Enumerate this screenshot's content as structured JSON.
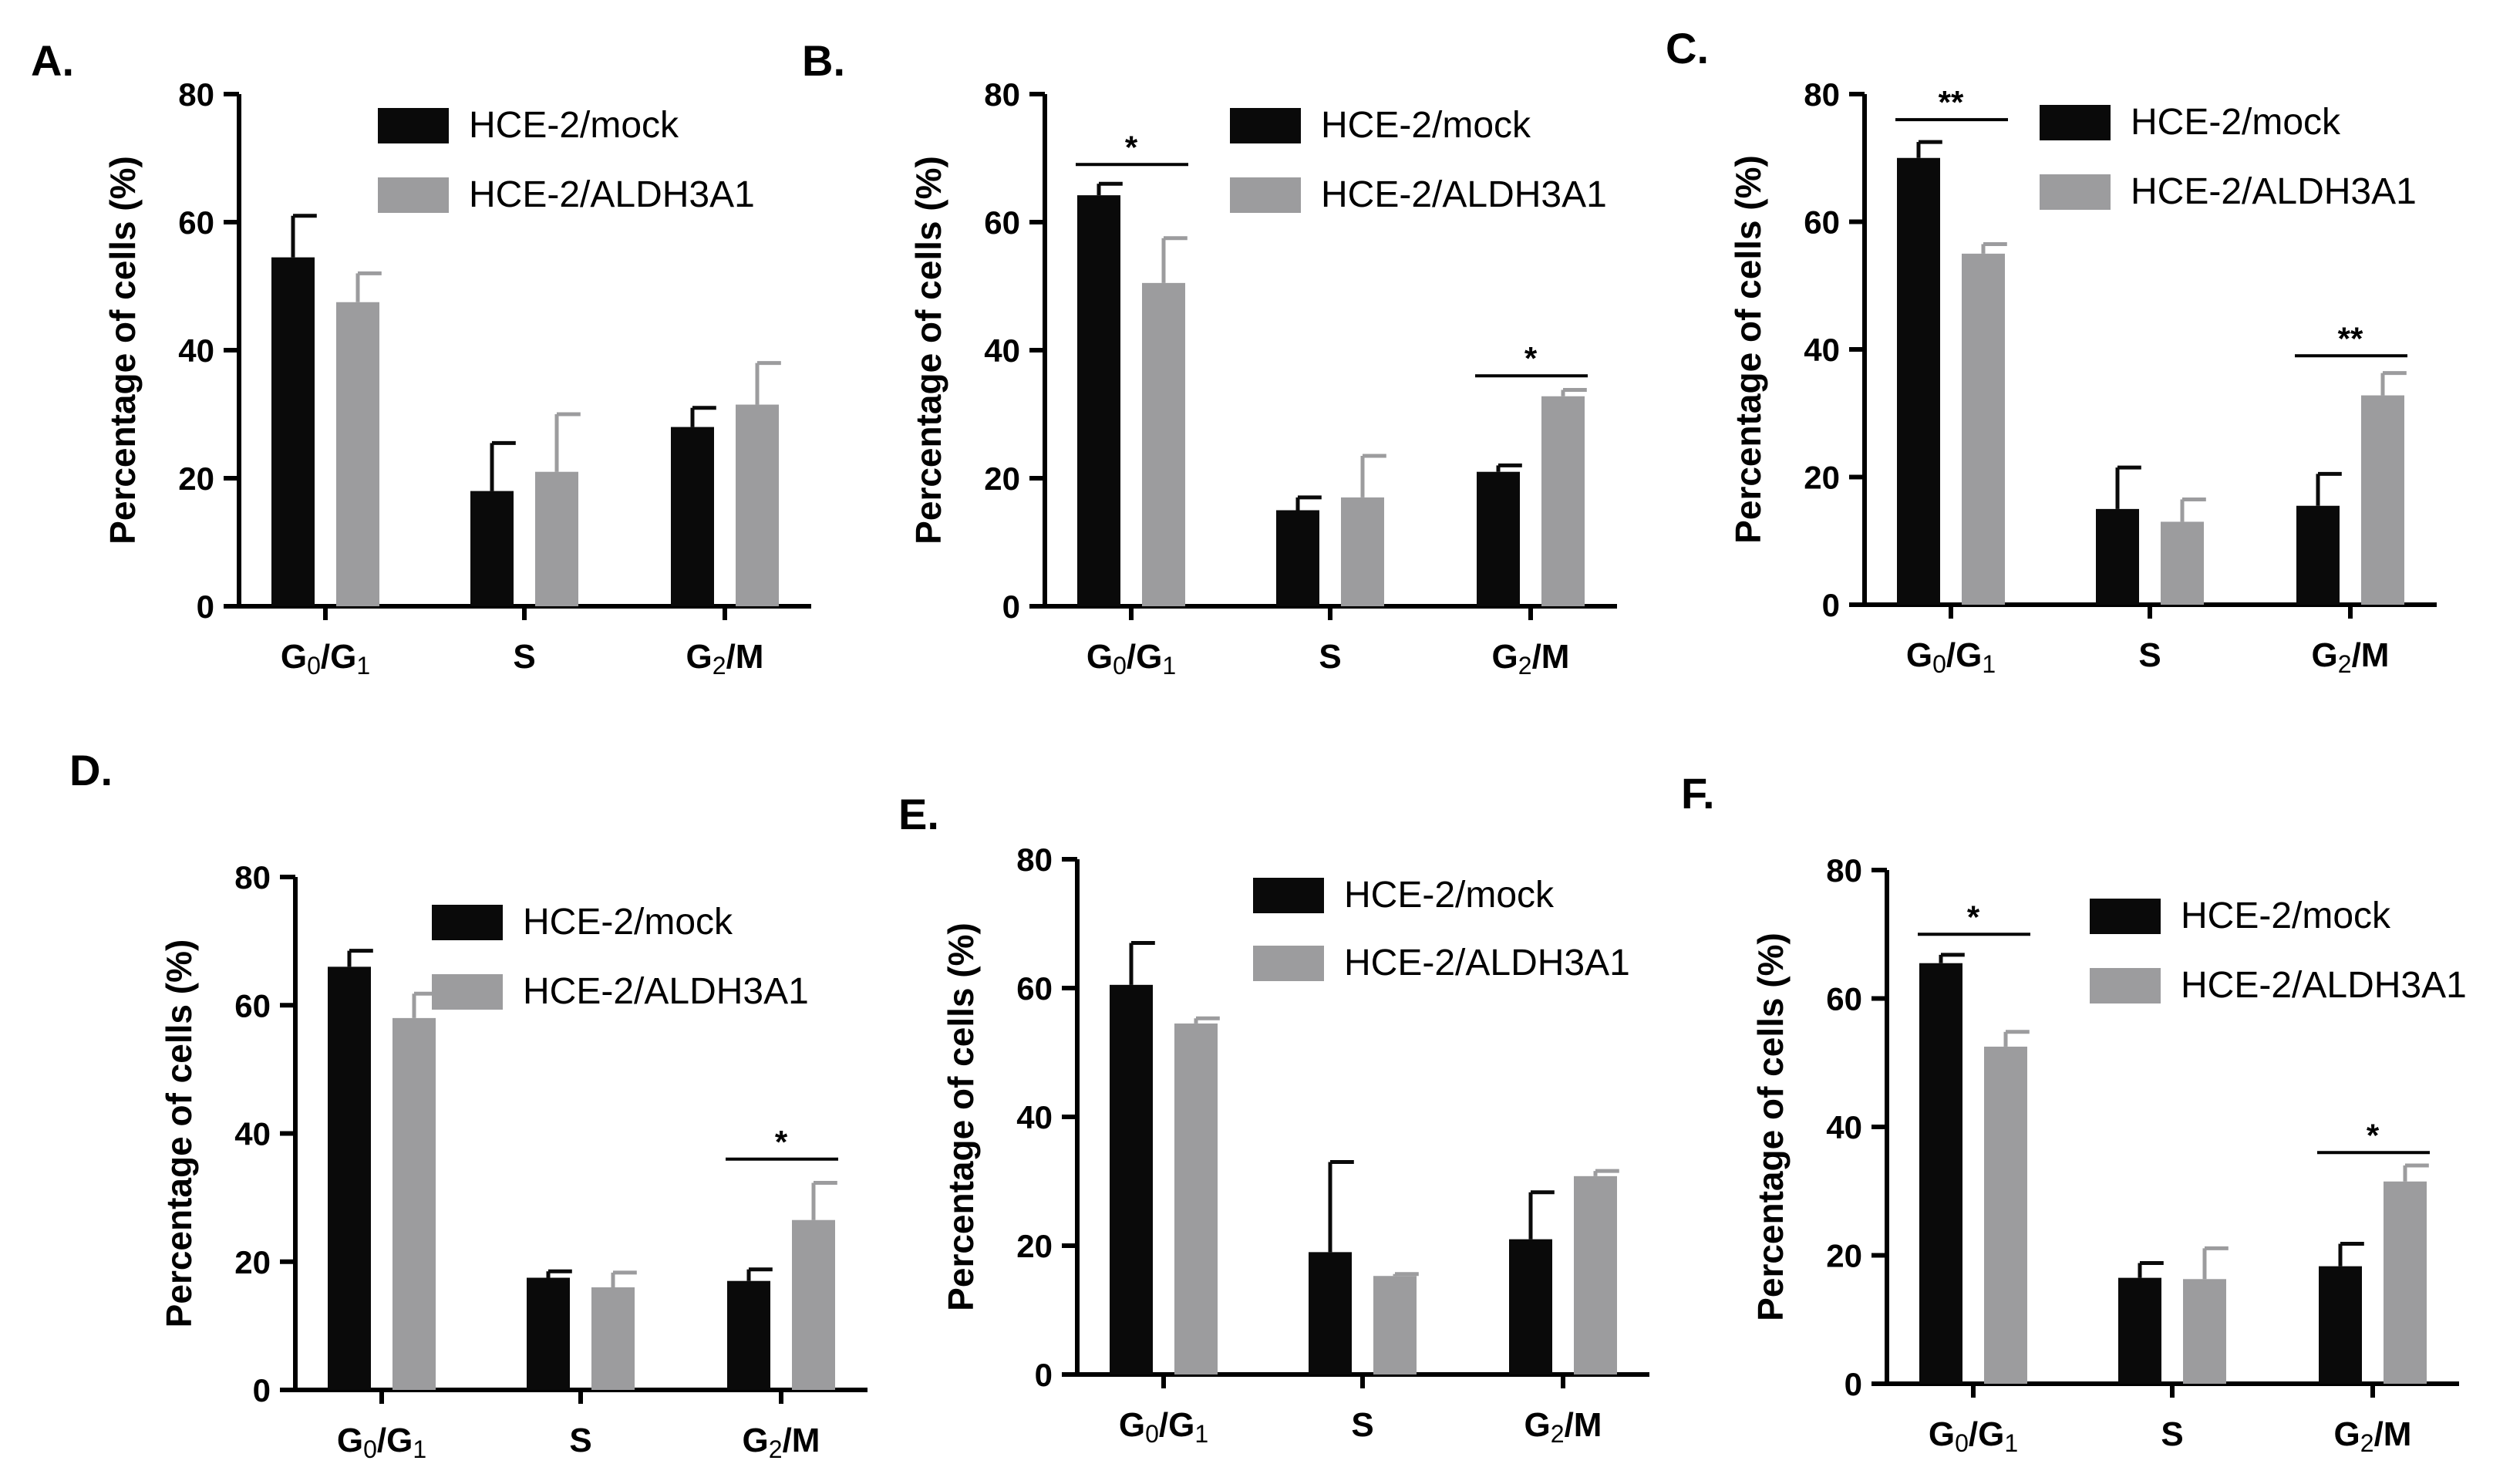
{
  "colors": {
    "mock": "#0a0a0a",
    "aldh": "#9c9c9e",
    "axis": "#000000",
    "text": "#000000"
  },
  "chart_data": [
    {
      "panel": "A.",
      "type": "bar",
      "ylabel": "Percentage of cells (%)",
      "ylim": [
        0,
        80
      ],
      "yticks": [
        0,
        20,
        40,
        60,
        80
      ],
      "categories": [
        {
          "main": "G",
          "sub1": "0",
          "sep": "/G",
          "sub2": "1"
        },
        {
          "main": "S"
        },
        {
          "main": "G",
          "sub1": "2",
          "sep": "/M"
        }
      ],
      "legend": [
        "HCE-2/mock",
        "HCE-2/ALDH3A1"
      ],
      "series": [
        {
          "name": "HCE-2/mock",
          "values": [
            54.5,
            18,
            28
          ],
          "errors": [
            6.5,
            7.5,
            3
          ]
        },
        {
          "name": "HCE-2/ALDH3A1",
          "values": [
            47.5,
            21,
            31.5
          ],
          "errors": [
            4.5,
            9,
            6.5
          ]
        }
      ],
      "significance": []
    },
    {
      "panel": "B.",
      "type": "bar",
      "ylabel": "Percentage of cells (%)",
      "ylim": [
        0,
        80
      ],
      "yticks": [
        0,
        20,
        40,
        60,
        80
      ],
      "categories": [
        {
          "main": "G",
          "sub1": "0",
          "sep": "/G",
          "sub2": "1"
        },
        {
          "main": "S"
        },
        {
          "main": "G",
          "sub1": "2",
          "sep": "/M"
        }
      ],
      "legend": [
        "HCE-2/mock",
        "HCE-2/ALDH3A1"
      ],
      "series": [
        {
          "name": "HCE-2/mock",
          "values": [
            64.2,
            15,
            21
          ],
          "errors": [
            1.8,
            2,
            1
          ]
        },
        {
          "name": "HCE-2/ALDH3A1",
          "values": [
            50.5,
            17,
            32.8
          ],
          "errors": [
            7,
            6.5,
            1
          ]
        }
      ],
      "significance": [
        {
          "category": 0,
          "label": "*",
          "y": 69
        },
        {
          "category": 2,
          "label": "*",
          "y": 36
        }
      ]
    },
    {
      "panel": "C.",
      "type": "bar",
      "ylabel": "Percentage of cells (%)",
      "ylim": [
        0,
        80
      ],
      "yticks": [
        0,
        20,
        40,
        60,
        80
      ],
      "categories": [
        {
          "main": "G",
          "sub1": "0",
          "sep": "/G",
          "sub2": "1"
        },
        {
          "main": "S"
        },
        {
          "main": "G",
          "sub1": "2",
          "sep": "/M"
        }
      ],
      "legend": [
        "HCE-2/mock",
        "HCE-2/ALDH3A1"
      ],
      "series": [
        {
          "name": "HCE-2/mock",
          "values": [
            70,
            15,
            15.5
          ],
          "errors": [
            2.5,
            6.5,
            5
          ]
        },
        {
          "name": "HCE-2/ALDH3A1",
          "values": [
            55,
            13,
            32.8
          ],
          "errors": [
            1.5,
            3.5,
            3.5
          ]
        }
      ],
      "significance": [
        {
          "category": 0,
          "label": "**",
          "y": 76
        },
        {
          "category": 2,
          "label": "**",
          "y": 39
        }
      ]
    },
    {
      "panel": "D.",
      "type": "bar",
      "ylabel": "Percentage of cells (%)",
      "ylim": [
        0,
        80
      ],
      "yticks": [
        0,
        20,
        40,
        60,
        80
      ],
      "categories": [
        {
          "main": "G",
          "sub1": "0",
          "sep": "/G",
          "sub2": "1"
        },
        {
          "main": "S"
        },
        {
          "main": "G",
          "sub1": "2",
          "sep": "/M"
        }
      ],
      "legend": [
        "HCE-2/mock",
        "HCE-2/ALDH3A1"
      ],
      "series": [
        {
          "name": "HCE-2/mock",
          "values": [
            66,
            17.5,
            17
          ],
          "errors": [
            2.5,
            1,
            1.8
          ]
        },
        {
          "name": "HCE-2/ALDH3A1",
          "values": [
            58,
            16,
            26.5
          ],
          "errors": [
            3.8,
            2.3,
            5.8
          ]
        }
      ],
      "significance": [
        {
          "category": 2,
          "label": "*",
          "y": 36
        }
      ]
    },
    {
      "panel": "E.",
      "type": "bar",
      "ylabel": "Percentage of cells (%)",
      "ylim": [
        0,
        80
      ],
      "yticks": [
        0,
        20,
        40,
        60,
        80
      ],
      "categories": [
        {
          "main": "G",
          "sub1": "0",
          "sep": "/G",
          "sub2": "1"
        },
        {
          "main": "S"
        },
        {
          "main": "G",
          "sub1": "2",
          "sep": "/M"
        }
      ],
      "legend": [
        "HCE-2/mock",
        "HCE-2/ALDH3A1"
      ],
      "series": [
        {
          "name": "HCE-2/mock",
          "values": [
            60.5,
            19,
            21
          ],
          "errors": [
            6.5,
            14,
            7.3
          ]
        },
        {
          "name": "HCE-2/ALDH3A1",
          "values": [
            54.5,
            15.3,
            30.8
          ],
          "errors": [
            0.8,
            0.3,
            0.8
          ]
        }
      ],
      "significance": []
    },
    {
      "panel": "F.",
      "type": "bar",
      "ylabel": "Percentage of cells (%)",
      "ylim": [
        0,
        80
      ],
      "yticks": [
        0,
        20,
        40,
        60,
        80
      ],
      "categories": [
        {
          "main": "G",
          "sub1": "0",
          "sep": "/G",
          "sub2": "1"
        },
        {
          "main": "S"
        },
        {
          "main": "G",
          "sub1": "2",
          "sep": "/M"
        }
      ],
      "legend": [
        "HCE-2/mock",
        "HCE-2/ALDH3A1"
      ],
      "series": [
        {
          "name": "HCE-2/mock",
          "values": [
            65.5,
            16.5,
            18.3
          ],
          "errors": [
            1.3,
            2.3,
            3.5
          ]
        },
        {
          "name": "HCE-2/ALDH3A1",
          "values": [
            52.5,
            16.3,
            31.5
          ],
          "errors": [
            2.3,
            4.8,
            2.5
          ]
        }
      ],
      "significance": [
        {
          "category": 0,
          "label": "*",
          "y": 70
        },
        {
          "category": 2,
          "label": "*",
          "y": 36
        }
      ]
    }
  ]
}
